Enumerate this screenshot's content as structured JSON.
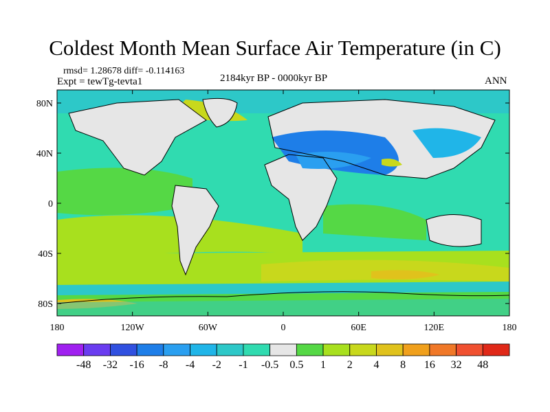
{
  "title": "Coldest Month Mean Surface Air Temperature (in C)",
  "stats": "rmsd= 1.28678 diff= -0.114163",
  "experiment": "Expt = tewTg-tevta1",
  "period": "2184kyr BP - 0000kyr BP",
  "season": "ANN",
  "axes": {
    "lat_ticks": [
      "80N",
      "40N",
      "0",
      "40S",
      "80S"
    ],
    "lon_ticks": [
      "180",
      "120W",
      "60W",
      "0",
      "60E",
      "120E",
      "180"
    ]
  },
  "colorbar": {
    "colors": [
      "#a020f0",
      "#6a3cf0",
      "#3050e0",
      "#1e7ee8",
      "#2a9ff0",
      "#20b5e8",
      "#2dc8c8",
      "#30dbb0",
      "#e6e6e6",
      "#55d845",
      "#a8e01e",
      "#c8d81c",
      "#e0c21c",
      "#f0a01c",
      "#f07828",
      "#f05030",
      "#e02818"
    ],
    "labels": [
      "-48",
      "-32",
      "-16",
      "-8",
      "-4",
      "-2",
      "-1",
      "-0.5",
      "0.5",
      "1",
      "2",
      "4",
      "8",
      "16",
      "32",
      "48"
    ]
  }
}
